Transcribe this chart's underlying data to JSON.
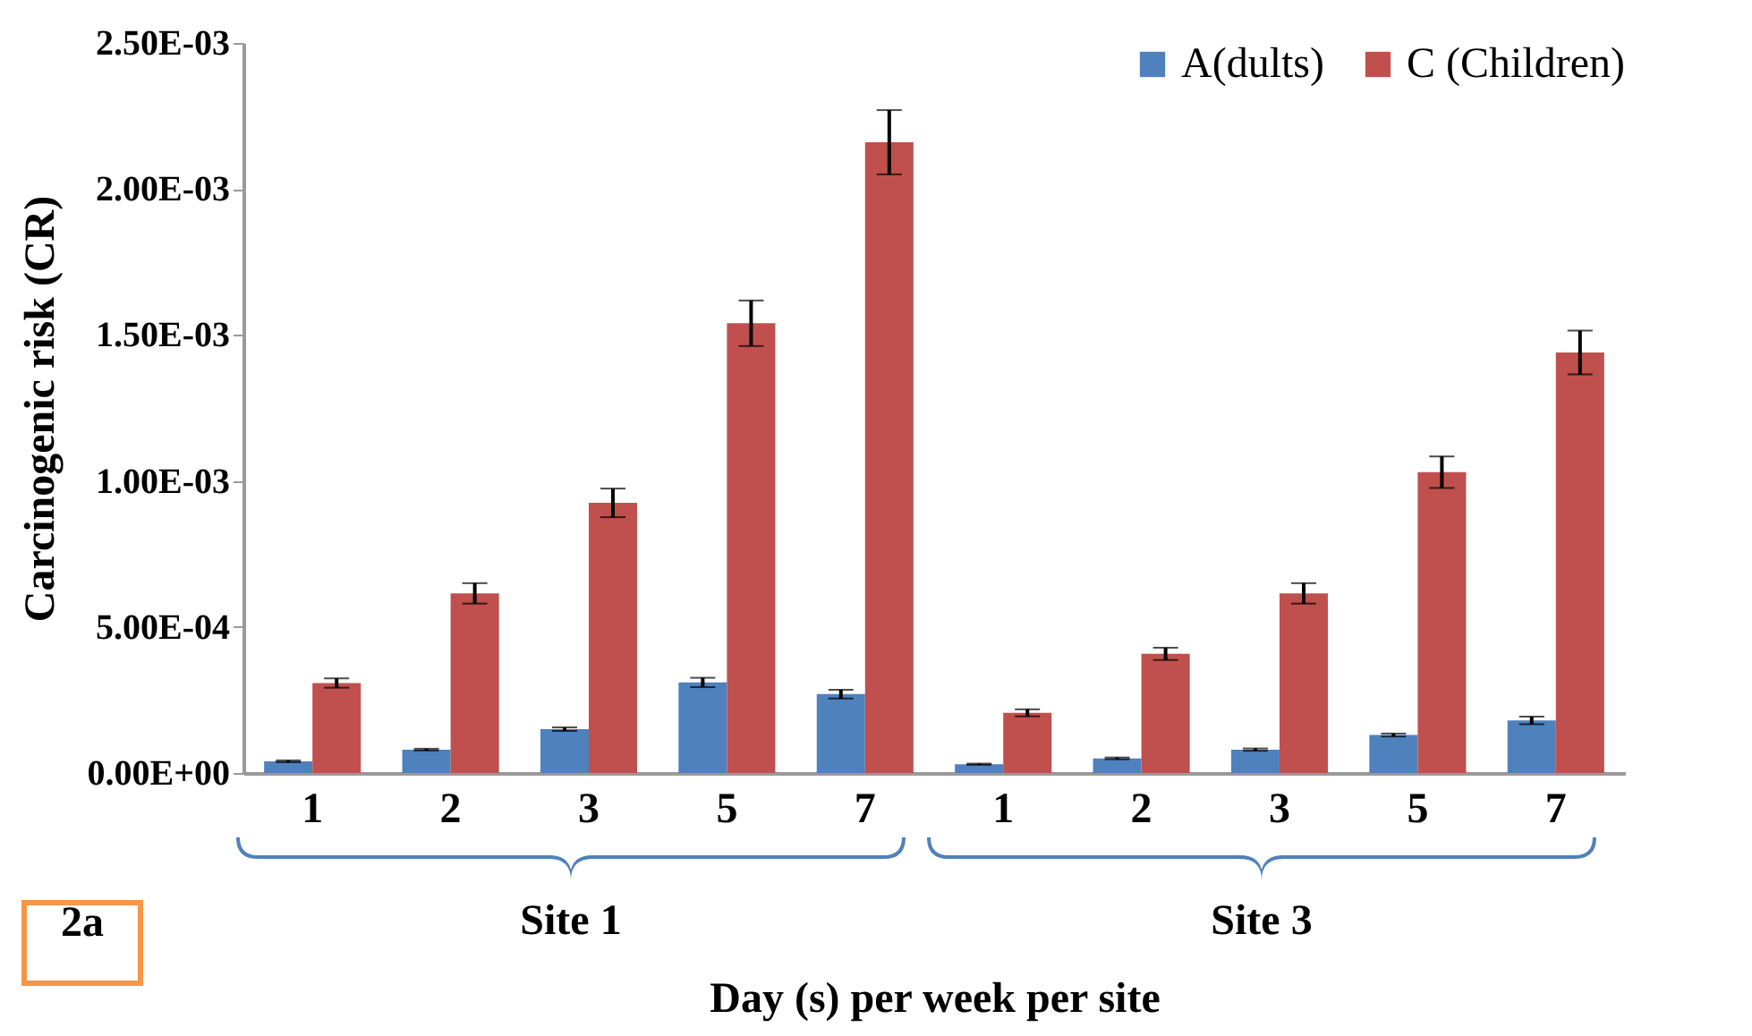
{
  "chart_data": {
    "type": "bar",
    "xlabel": "Day (s) per week per site",
    "ylabel": "Carcinogenic risk (CR)",
    "categories": [
      "1",
      "2",
      "3",
      "5",
      "7",
      "1",
      "2",
      "3",
      "5",
      "7"
    ],
    "series": [
      {
        "name": "A(dults)",
        "color": "#4f81bd",
        "values": [
          4e-05,
          8e-05,
          0.00015,
          0.00031,
          0.00027,
          3e-05,
          5e-05,
          8e-05,
          0.00013,
          0.00018
        ],
        "errors": [
          3e-06,
          3e-06,
          6e-06,
          1.6e-05,
          1.5e-05,
          2e-06,
          3e-06,
          4e-06,
          5e-06,
          1.3e-05
        ]
      },
      {
        "name": "C (Children)",
        "color": "#c0504d",
        "values": [
          0.000308,
          0.000615,
          0.000925,
          0.00154,
          0.00216,
          0.000206,
          0.000408,
          0.000615,
          0.00103,
          0.00144
        ],
        "errors": [
          1.6e-05,
          3.5e-05,
          4.9e-05,
          7.8e-05,
          0.00011,
          1.2e-05,
          2.1e-05,
          3.5e-05,
          5.4e-05,
          7.5e-05
        ]
      }
    ],
    "ylim": [
      0,
      0.0025
    ],
    "yticks": [
      {
        "value": 0,
        "label": "0.00E+00"
      },
      {
        "value": 0.0005,
        "label": "5.00E-04"
      },
      {
        "value": 0.001,
        "label": "1.00E-03"
      },
      {
        "value": 0.0015,
        "label": "1.50E-03"
      },
      {
        "value": 0.002,
        "label": "2.00E-03"
      },
      {
        "value": 0.0025,
        "label": "2.50E-03"
      }
    ],
    "legend": "top right",
    "grid": false,
    "annotations": [
      "Site 1",
      "Site 3",
      "2a"
    ]
  }
}
